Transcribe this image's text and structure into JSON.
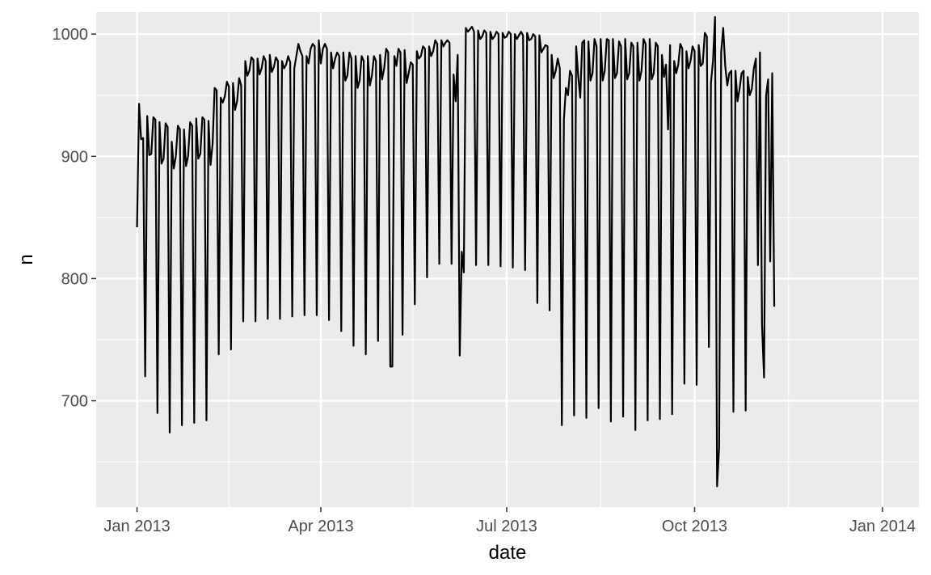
{
  "chart_data": {
    "type": "line",
    "title": "",
    "xlabel": "date",
    "ylabel": "n",
    "x_axis_type": "date",
    "xlim": [
      "2012-12-12",
      "2014-01-01"
    ],
    "ylim": [
      613,
      1018
    ],
    "x_ticks": [
      {
        "date": "2013-01-01",
        "label": "Jan 2013"
      },
      {
        "date": "2013-04-01",
        "label": "Apr 2013"
      },
      {
        "date": "2013-07-01",
        "label": "Jul 2013"
      },
      {
        "date": "2013-10-01",
        "label": "Oct 2013"
      },
      {
        "date": "2014-01-01",
        "label": "Jan 2014"
      }
    ],
    "x_minor_ticks": [
      "2013-02-15",
      "2013-05-16",
      "2013-08-16",
      "2013-11-16"
    ],
    "y_ticks": [
      700,
      800,
      900,
      1000
    ],
    "y_minor_ticks": [
      650,
      750,
      850,
      950
    ],
    "grid": true,
    "colors": {
      "panel": "#ebebeb",
      "grid": "#ffffff",
      "line": "#000000"
    },
    "series": [
      {
        "x_start": "2013-01-01",
        "x_step_days": 1,
        "values": [
          842,
          943,
          914,
          915,
          720,
          933,
          901,
          902,
          932,
          930,
          690,
          928,
          894,
          898,
          927,
          924,
          674,
          912,
          890,
          900,
          925,
          922,
          680,
          922,
          892,
          900,
          928,
          925,
          682,
          931,
          898,
          902,
          932,
          930,
          684,
          929,
          893,
          910,
          956,
          954,
          738,
          948,
          944,
          949,
          961,
          957,
          742,
          960,
          938,
          945,
          964,
          958,
          765,
          978,
          966,
          970,
          981,
          979,
          765,
          980,
          967,
          972,
          982,
          978,
          767,
          983,
          969,
          973,
          981,
          978,
          767,
          978,
          972,
          975,
          982,
          977,
          769,
          972,
          982,
          992,
          986,
          982,
          770,
          982,
          976,
          988,
          992,
          990,
          770,
          995,
          976,
          988,
          992,
          988,
          766,
          985,
          972,
          980,
          985,
          982,
          757,
          985,
          962,
          966,
          985,
          980,
          745,
          982,
          956,
          962,
          982,
          978,
          738,
          982,
          958,
          966,
          982,
          978,
          749,
          983,
          963,
          972,
          988,
          985,
          728,
          728,
          982,
          974,
          988,
          985,
          754,
          987,
          960,
          968,
          977,
          975,
          779,
          986,
          980,
          982,
          990,
          988,
          801,
          990,
          982,
          986,
          995,
          992,
          812,
          995,
          990,
          993,
          995,
          993,
          812,
          967,
          945,
          983,
          737,
          822,
          805,
          1005,
          1002,
          1004,
          1006,
          1002,
          811,
          1003,
          996,
          998,
          1003,
          1001,
          811,
          1002,
          996,
          998,
          1002,
          1000,
          810,
          1001,
          997,
          998,
          1002,
          1000,
          809,
          1000,
          996,
          999,
          1002,
          999,
          807,
          1001,
          995,
          996,
          1000,
          998,
          780,
          999,
          985,
          988,
          991,
          990,
          774,
          983,
          964,
          970,
          980,
          972,
          680,
          930,
          956,
          950,
          970,
          966,
          688,
          990,
          966,
          948,
          993,
          995,
          686,
          994,
          962,
          968,
          996,
          990,
          694,
          996,
          962,
          970,
          996,
          995,
          683,
          996,
          964,
          968,
          994,
          990,
          687,
          996,
          963,
          968,
          993,
          990,
          676,
          993,
          962,
          970,
          996,
          992,
          684,
          996,
          963,
          968,
          993,
          990,
          685,
          983,
          965,
          975,
          922,
          991,
          689,
          978,
          968,
          975,
          992,
          988,
          714,
          986,
          972,
          978,
          990,
          986,
          713,
          991,
          974,
          976,
          1001,
          998,
          744,
          960,
          978,
          1014,
          630,
          662,
          985,
          1005,
          974,
          958,
          968,
          970,
          691,
          970,
          945,
          955,
          968,
          970,
          692,
          965,
          950,
          955,
          972,
          980,
          811,
          985,
          762,
          719,
          950,
          963,
          814,
          968,
          777
        ]
      }
    ]
  }
}
